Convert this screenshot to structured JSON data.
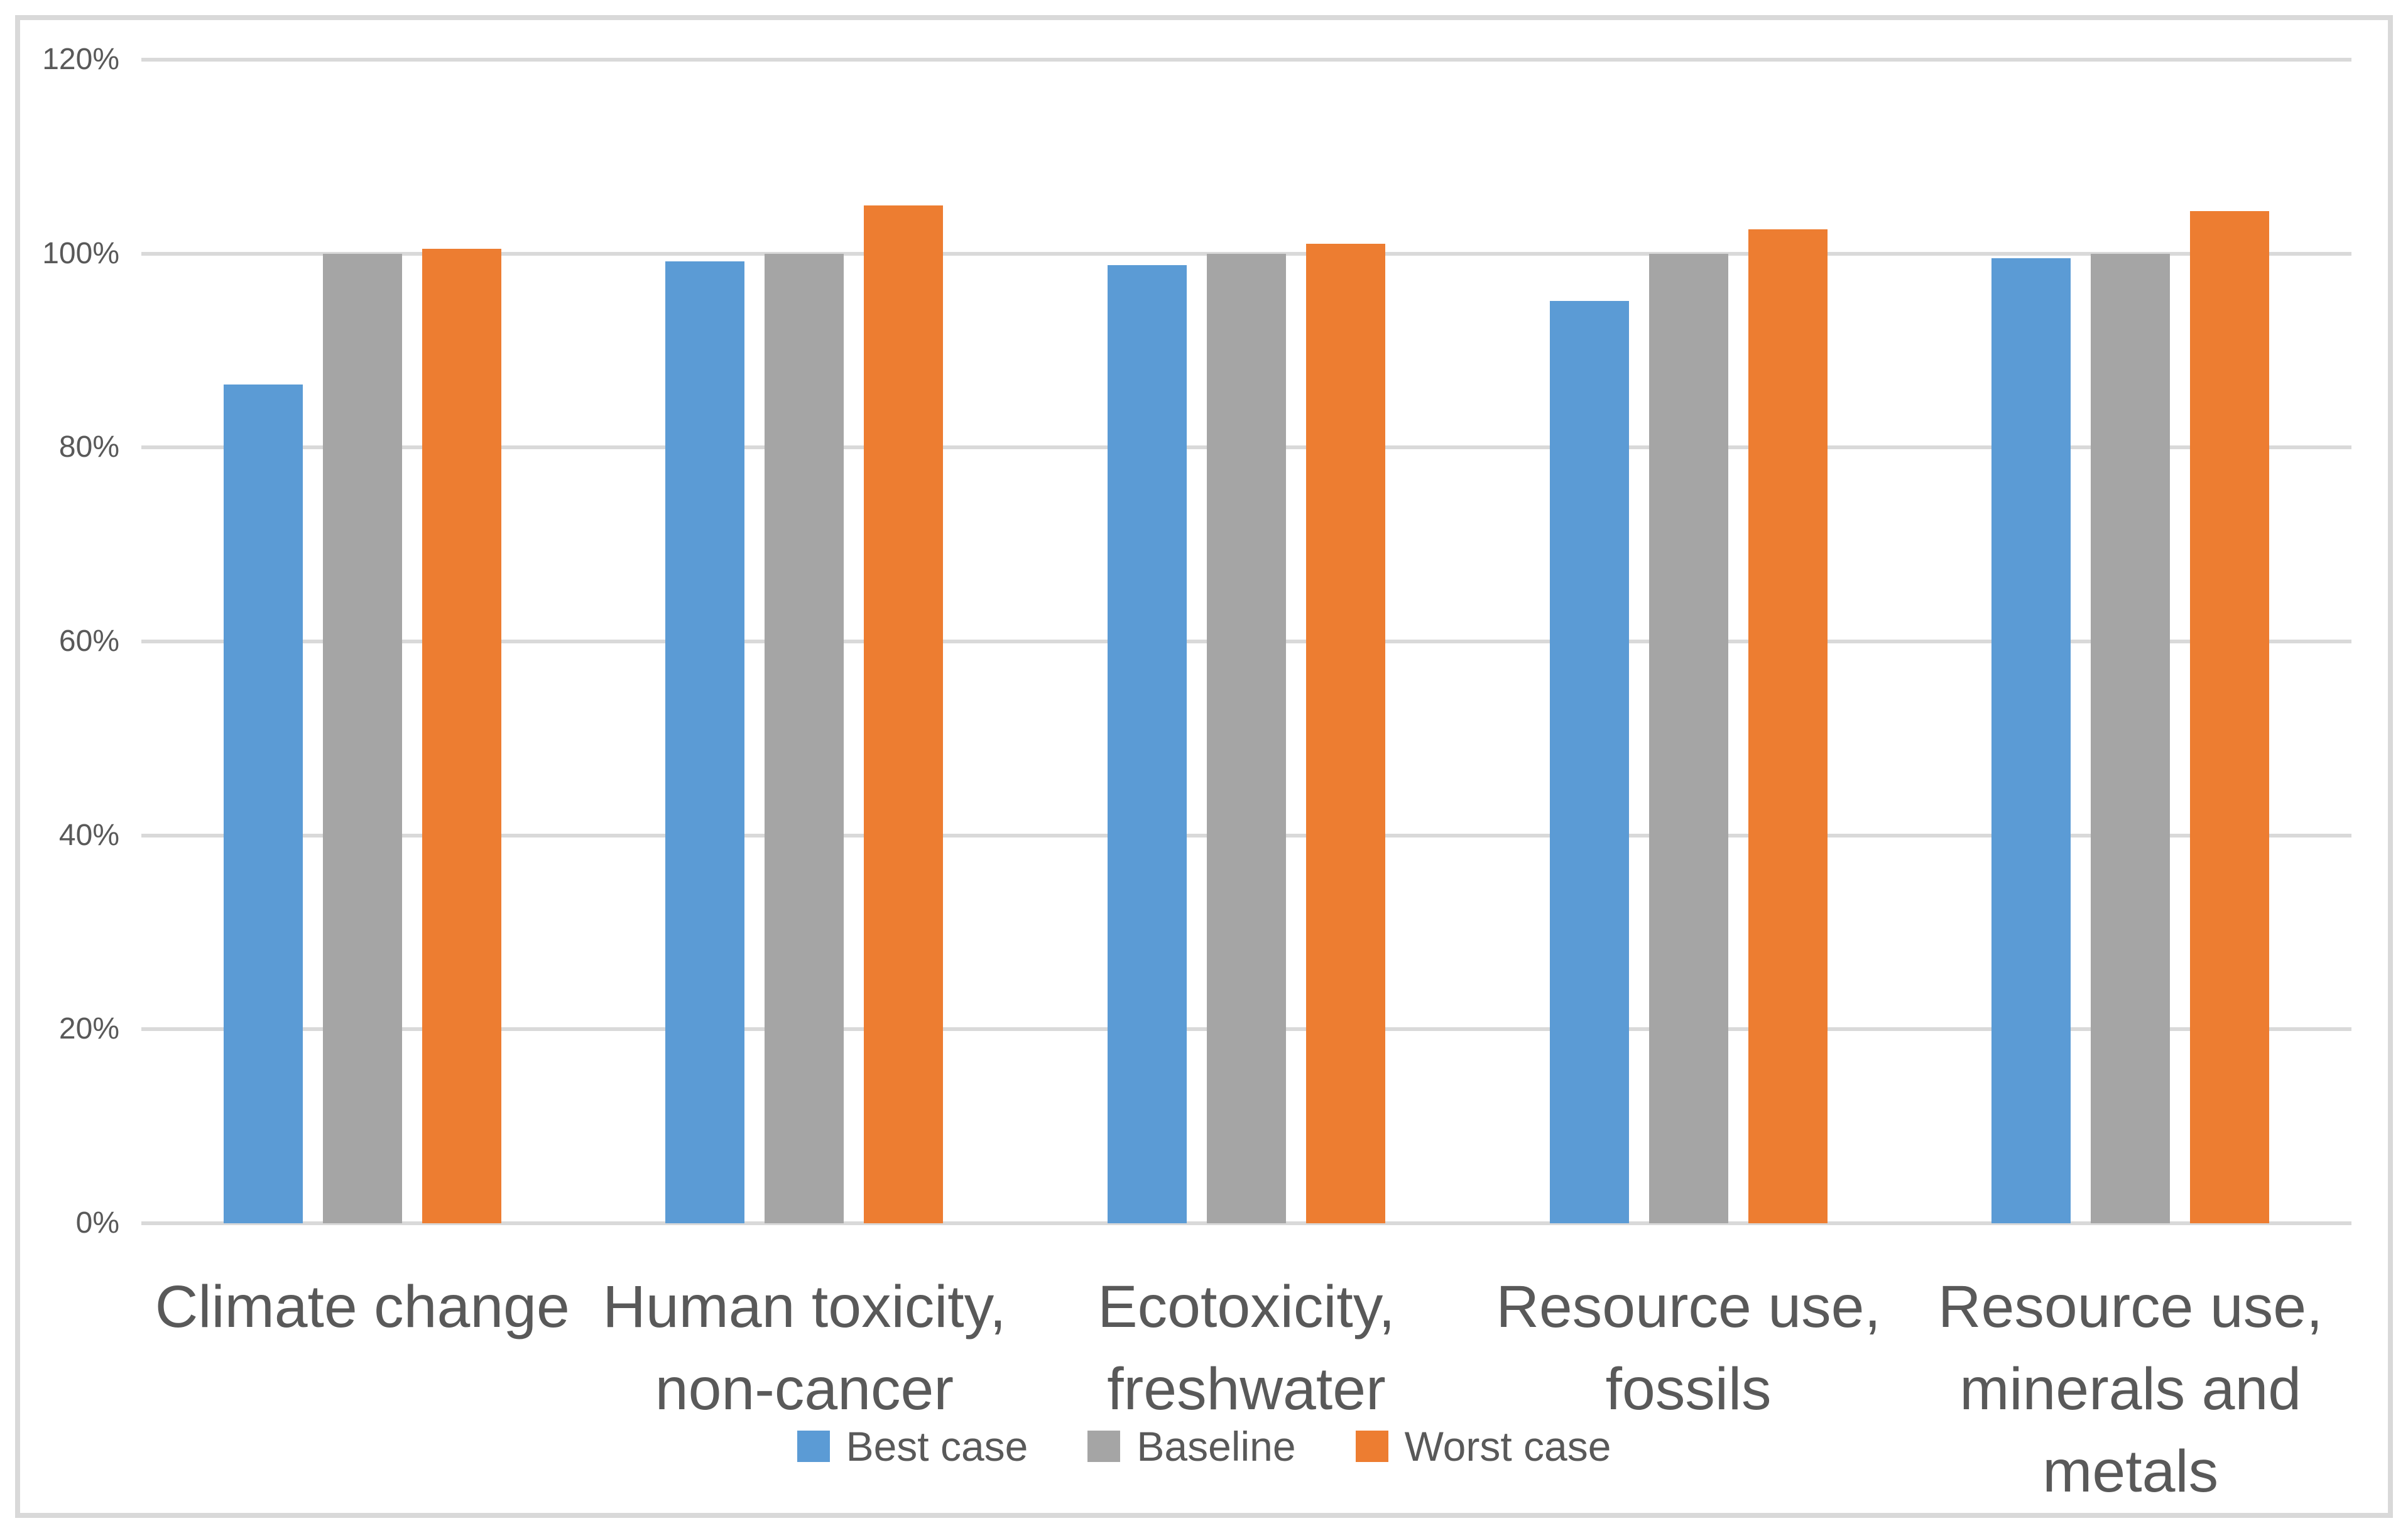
{
  "chart_data": {
    "type": "bar",
    "title": "",
    "xlabel": "",
    "ylabel": "",
    "categories": [
      "Climate change",
      "Human toxicity,\nnon-cancer",
      "Ecotoxicity,\nfreshwater",
      "Resource use,\nfossils",
      "Resource use,\nminerals and metals"
    ],
    "series": [
      {
        "name": "Best case",
        "color": "#5B9BD5",
        "values": [
          86.5,
          99.2,
          98.8,
          95.1,
          99.5
        ]
      },
      {
        "name": "Baseline",
        "color": "#A5A5A5",
        "values": [
          100,
          100,
          100,
          100,
          100
        ]
      },
      {
        "name": "Worst case",
        "color": "#ED7D31",
        "values": [
          100.5,
          105.0,
          101.0,
          102.5,
          104.4
        ]
      }
    ],
    "ylim": [
      0,
      120
    ],
    "ytick_step": 20,
    "ytick_labels": [
      "0%",
      "20%",
      "40%",
      "60%",
      "80%",
      "100%",
      "120%"
    ],
    "grid": true,
    "legend_position": "bottom"
  },
  "style": {
    "grid_color": "#d9d9d9",
    "frame_color": "#d9d9d9",
    "text_color": "#595959",
    "background": "#ffffff"
  }
}
